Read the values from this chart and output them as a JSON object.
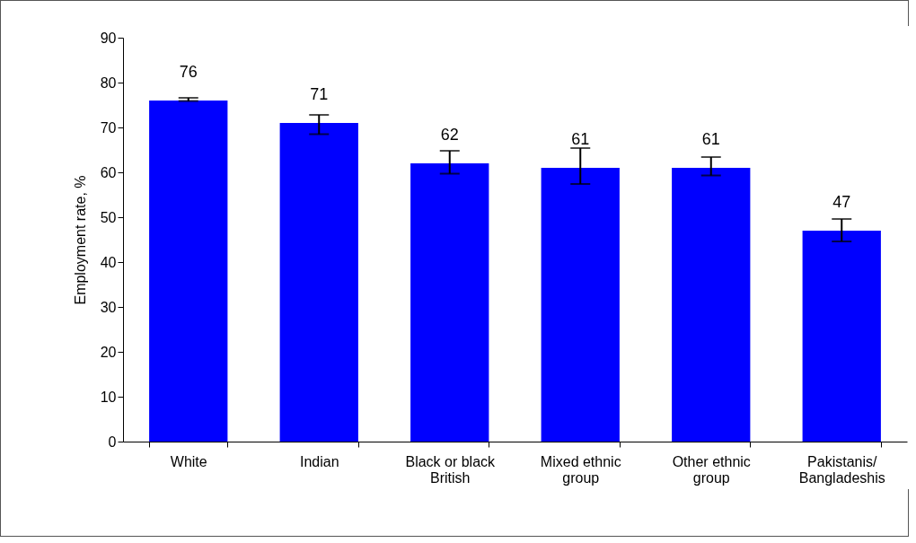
{
  "chart_data": {
    "type": "bar",
    "ylabel": "Employment rate, %",
    "categories": [
      "White",
      "Indian",
      "Black or black British",
      "Mixed ethnic group",
      "Other ethnic group",
      "Pakistanis/ Bangladeshis"
    ],
    "values": [
      76,
      71,
      62,
      61,
      61,
      47
    ],
    "errors": [
      [
        75.9,
        76.6
      ],
      [
        68.5,
        72.8
      ],
      [
        59.7,
        64.8
      ],
      [
        57.4,
        65.4
      ],
      [
        59.3,
        63.4
      ],
      [
        44.6,
        49.6
      ]
    ],
    "color": "#0000ff",
    "data_labels": true,
    "ylim": [
      0,
      90
    ],
    "yticks": [
      0,
      10,
      20,
      30,
      40,
      50,
      60,
      70,
      80,
      90
    ],
    "grid": false
  }
}
